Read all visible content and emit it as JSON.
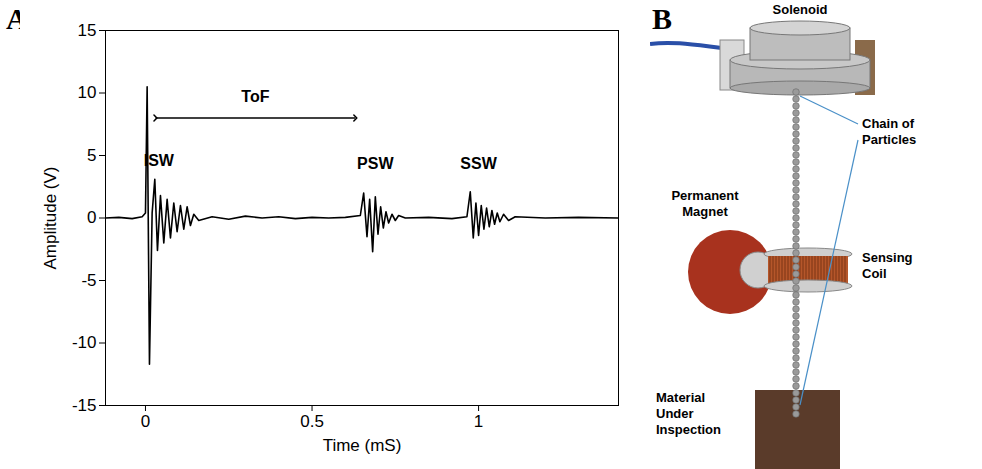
{
  "chart_data": {
    "type": "line",
    "panel_label": "A",
    "x_label": "Time (mS)",
    "y_label": "Amplitude (V)",
    "color": "#000000",
    "xlim": [
      -0.12,
      1.42
    ],
    "xticks": [
      0,
      0.5,
      1
    ],
    "ylim": [
      -15,
      15
    ],
    "yticks": [
      -15,
      -10,
      -5,
      0,
      5,
      10,
      15
    ],
    "grid": false,
    "x": [
      -0.12,
      -0.08,
      -0.04,
      -0.01,
      0,
      0.005,
      0.012,
      0.02,
      0.028,
      0.036,
      0.045,
      0.055,
      0.065,
      0.075,
      0.085,
      0.095,
      0.105,
      0.115,
      0.125,
      0.135,
      0.145,
      0.16,
      0.2,
      0.25,
      0.3,
      0.35,
      0.4,
      0.45,
      0.5,
      0.55,
      0.6,
      0.645,
      0.655,
      0.665,
      0.673,
      0.682,
      0.69,
      0.698,
      0.706,
      0.714,
      0.722,
      0.73,
      0.74,
      0.75,
      0.76,
      0.78,
      0.85,
      0.92,
      0.965,
      0.975,
      0.984,
      0.992,
      1.0,
      1.008,
      1.016,
      1.024,
      1.032,
      1.04,
      1.048,
      1.056,
      1.064,
      1.075,
      1.09,
      1.11,
      1.2,
      1.3,
      1.42
    ],
    "values": [
      0,
      0.05,
      -0.05,
      0.1,
      0.4,
      10.5,
      -11.7,
      0.4,
      3.1,
      -2.6,
      1.8,
      -2.0,
      1.5,
      -1.6,
      1.2,
      -1.1,
      1.0,
      -0.9,
      0.9,
      -0.6,
      0.3,
      -0.2,
      0.1,
      -0.1,
      0.15,
      0,
      0.1,
      -0.05,
      0.05,
      0,
      0.05,
      0.2,
      2.0,
      -1.5,
      1.5,
      -2.7,
      1.7,
      -1.3,
      0.9,
      -0.8,
      0.5,
      -0.4,
      0.3,
      -0.2,
      0.2,
      0,
      0.05,
      -0.05,
      0.1,
      2.1,
      -1.6,
      1.2,
      -1.4,
      1.0,
      -0.9,
      0.8,
      -0.7,
      0.6,
      -0.5,
      0.4,
      -0.3,
      0.3,
      -0.2,
      0.1,
      0,
      0.05,
      0
    ],
    "annotations": [
      {
        "text": "ISW",
        "x": 0.04,
        "y": 4.6
      },
      {
        "text": "PSW",
        "x": 0.69,
        "y": 4.3
      },
      {
        "text": "SSW",
        "x": 1.0,
        "y": 4.3
      },
      {
        "text": "ToF",
        "x": 0.33,
        "y": 9.7,
        "span": [
          0.03,
          0.63
        ],
        "span_y": 8
      }
    ]
  },
  "diagram": {
    "panel_label": "B",
    "labels": {
      "solenoid": "Solenoid",
      "chain": "Chain of Particles",
      "magnet": "Permanent Magnet",
      "coil": "Sensing Coil",
      "material": "Material Under Inspection"
    }
  }
}
